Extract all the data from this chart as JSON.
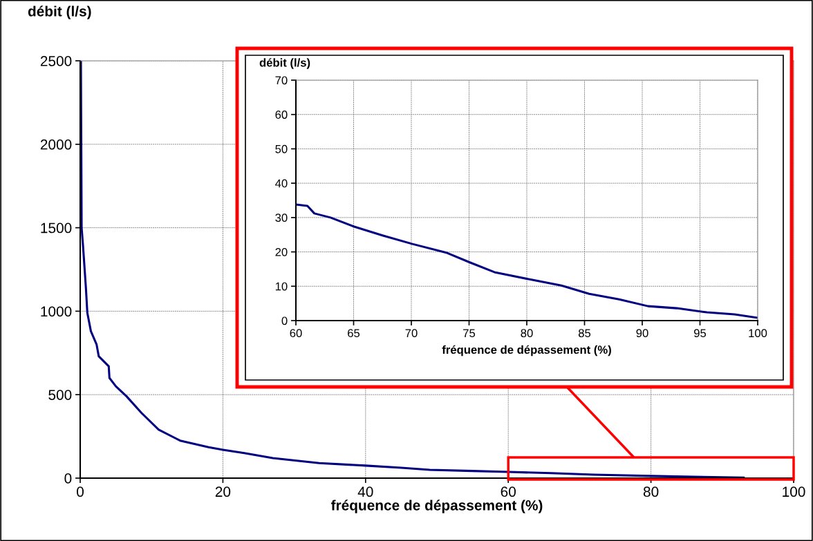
{
  "chart_data": [
    {
      "type": "line",
      "xlabel": "fréquence de dépassement (%)",
      "ylabel": "débit (l/s)",
      "series": [
        {
          "color": "#000080",
          "x": [
            0.1,
            0.2,
            0.4,
            0.8,
            1,
            1.5,
            2.3,
            2.6,
            4,
            4.1,
            5,
            6.5,
            8.6,
            11,
            14,
            18,
            20,
            23,
            27,
            33.5,
            40,
            45,
            49,
            55,
            60,
            66,
            72,
            80,
            86,
            93
          ],
          "values": [
            2500,
            1500,
            1390,
            1140,
            990,
            880,
            800,
            730,
            670,
            600,
            550,
            490,
            390,
            290,
            225,
            185,
            170,
            150,
            120,
            90,
            75,
            62,
            50,
            43,
            37,
            30,
            21,
            13,
            8,
            3
          ]
        }
      ],
      "xlim": [
        0,
        100
      ],
      "xticks": [
        0,
        20,
        40,
        60,
        80,
        100
      ],
      "ylim": [
        0,
        2500
      ],
      "yticks": [
        0,
        500,
        1000,
        1500,
        2000,
        2500
      ],
      "grid": true,
      "line_style": "solid",
      "marker": "none"
    },
    {
      "type": "line",
      "xlabel": "fréquence de dépassement (%)",
      "ylabel": "débit (l/s)",
      "series": [
        {
          "color": "#000080",
          "x": [
            60,
            61,
            61.6,
            63,
            65,
            67.5,
            70.1,
            73.1,
            75.1,
            77.2,
            80.4,
            83,
            85.4,
            88,
            90.5,
            93,
            95.6,
            98,
            100
          ],
          "values": [
            33.8,
            33.4,
            31.2,
            30,
            27.4,
            24.8,
            22.3,
            19.7,
            16.9,
            14.1,
            11.9,
            10.2,
            7.8,
            6.2,
            4.2,
            3.6,
            2.4,
            1.8,
            0.8
          ]
        }
      ],
      "xlim": [
        60,
        100
      ],
      "xticks": [
        60,
        65,
        70,
        75,
        80,
        85,
        90,
        95,
        100
      ],
      "ylim": [
        0,
        70
      ],
      "yticks": [
        0,
        10,
        20,
        30,
        40,
        50,
        60,
        70
      ],
      "grid": true,
      "line_style": "solid",
      "marker": "none"
    }
  ]
}
